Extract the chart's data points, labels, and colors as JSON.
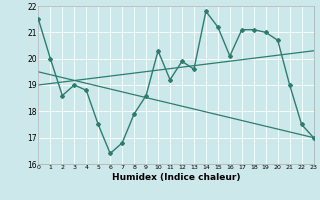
{
  "xlabel": "Humidex (Indice chaleur)",
  "xlim": [
    0,
    23
  ],
  "ylim": [
    16,
    22
  ],
  "yticks": [
    16,
    17,
    18,
    19,
    20,
    21,
    22
  ],
  "xticks": [
    0,
    1,
    2,
    3,
    4,
    5,
    6,
    7,
    8,
    9,
    10,
    11,
    12,
    13,
    14,
    15,
    16,
    17,
    18,
    19,
    20,
    21,
    22,
    23
  ],
  "bg_color": "#cde8eb",
  "line_color": "#2d7d6e",
  "line1_x": [
    0,
    1,
    2,
    3,
    4,
    5,
    6,
    7,
    8,
    9,
    10,
    11,
    12,
    13,
    14,
    15,
    16,
    17,
    18,
    19,
    20,
    21,
    22,
    23
  ],
  "line1_y": [
    21.5,
    20.0,
    18.6,
    19.0,
    18.8,
    17.5,
    16.4,
    16.8,
    17.9,
    18.6,
    20.3,
    19.2,
    19.9,
    19.6,
    21.8,
    21.2,
    20.1,
    21.1,
    21.1,
    21.0,
    20.7,
    19.0,
    17.5,
    17.0
  ],
  "line2_x": [
    0,
    23
  ],
  "line2_y": [
    19.0,
    20.3
  ],
  "line3_x": [
    0,
    23
  ],
  "line3_y": [
    19.5,
    17.0
  ]
}
